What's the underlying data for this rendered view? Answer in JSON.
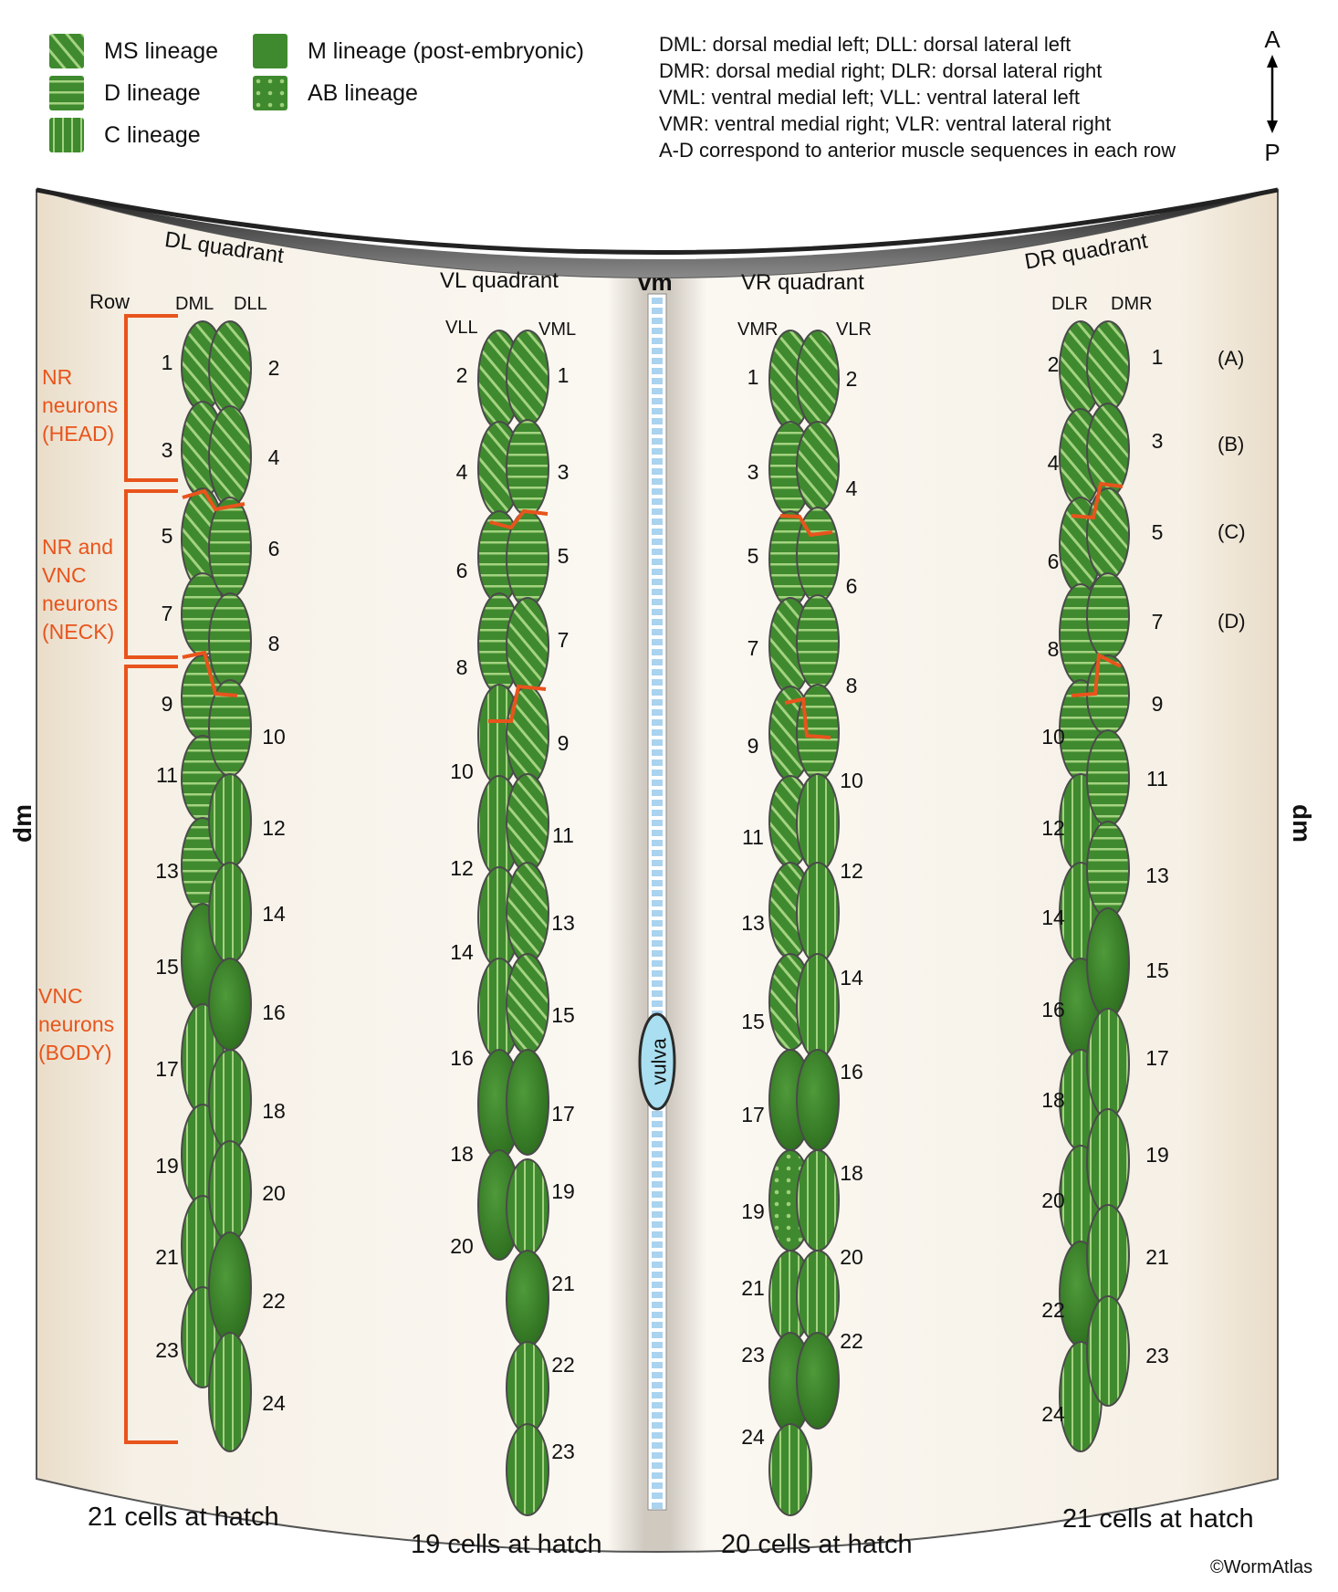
{
  "legend": [
    {
      "label": "MS lineage",
      "pattern": "diagonal"
    },
    {
      "label": "D lineage",
      "pattern": "horizontal"
    },
    {
      "label": "C lineage",
      "pattern": "vertical"
    },
    {
      "label": "M lineage (post-embryonic)",
      "pattern": "solid"
    },
    {
      "label": "AB lineage",
      "pattern": "dots"
    }
  ],
  "definitions": [
    "DML: dorsal medial left; DLL: dorsal lateral left",
    "DMR: dorsal medial right; DLR: dorsal lateral right",
    "VML: ventral medial left; VLL: ventral lateral left",
    "VMR: ventral medial right; VLR: ventral lateral right",
    "A-D correspond to anterior muscle sequences in each row"
  ],
  "axis": {
    "anterior": "A",
    "posterior": "P"
  },
  "colors": {
    "muscle": "#3f8a2e",
    "muscle_dark": "#2d6b20",
    "muscle_stripe": "#b6df8e",
    "background": "#f5efe4",
    "boundary": "#e8541c",
    "vm": "#a9d3ef",
    "vulva": "#a9dff0"
  },
  "quadrants": {
    "dl": {
      "title": "DL quadrant",
      "row_label": "Row",
      "col_left": "DML",
      "col_right": "DLL",
      "left_numbers": [
        "1",
        "3",
        "5",
        "7",
        "9",
        "11",
        "13",
        "15",
        "17",
        "19",
        "21",
        "23"
      ],
      "right_numbers": [
        "2",
        "4",
        "6",
        "8",
        "10",
        "12",
        "14",
        "16",
        "18",
        "20",
        "22",
        "24"
      ],
      "hatch": "21 cells at hatch"
    },
    "vl": {
      "title": "VL quadrant",
      "col_left": "VLL",
      "col_right": "VML",
      "left_numbers": [
        "2",
        "4",
        "6",
        "8",
        "10",
        "12",
        "14",
        "16",
        "18",
        "20"
      ],
      "right_numbers": [
        "1",
        "3",
        "5",
        "7",
        "9",
        "11",
        "13",
        "15",
        "17",
        "19",
        "21",
        "22",
        "23"
      ],
      "hatch": "19 cells at hatch"
    },
    "vr": {
      "title": "VR quadrant",
      "col_left": "VMR",
      "col_right": "VLR",
      "left_numbers": [
        "1",
        "3",
        "5",
        "7",
        "9",
        "11",
        "13",
        "15",
        "17",
        "19",
        "21",
        "23",
        "24"
      ],
      "right_numbers": [
        "2",
        "4",
        "6",
        "8",
        "10",
        "12",
        "14",
        "16",
        "18",
        "20",
        "22"
      ],
      "hatch": "20 cells at hatch"
    },
    "dr": {
      "title": "DR quadrant",
      "col_left": "DLR",
      "col_right": "DMR",
      "left_numbers": [
        "2",
        "4",
        "6",
        "8",
        "10",
        "12",
        "14",
        "16",
        "18",
        "20",
        "22",
        "24"
      ],
      "right_numbers": [
        "1",
        "3",
        "5",
        "7",
        "9",
        "11",
        "13",
        "15",
        "17",
        "19",
        "21",
        "23"
      ],
      "hatch": "21 cells at hatch"
    }
  },
  "sequences": [
    "(A)",
    "(B)",
    "(C)",
    "(D)"
  ],
  "brackets": [
    {
      "lines": [
        "NR",
        "neurons",
        "(HEAD)"
      ]
    },
    {
      "lines": [
        "NR and",
        "VNC",
        "neurons",
        "(NECK)"
      ]
    },
    {
      "lines": [
        "VNC",
        "neurons",
        "(BODY)"
      ]
    }
  ],
  "vm_label": "vm",
  "vulva_label": "vulva",
  "dm_label": "dm",
  "credit": "©WormAtlas"
}
